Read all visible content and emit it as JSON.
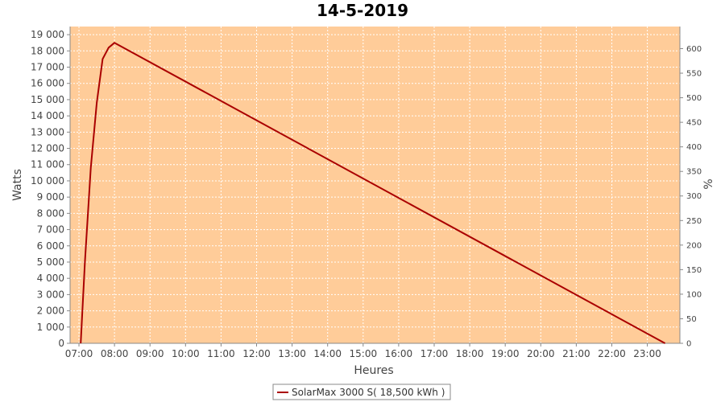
{
  "chart_data": {
    "type": "line",
    "title": "14-5-2019",
    "xlabel": "Heures",
    "ylabel": "Watts",
    "y2label": "%",
    "x_ticks": [
      "07:00",
      "08:00",
      "09:00",
      "10:00",
      "11:00",
      "12:00",
      "13:00",
      "14:00",
      "15:00",
      "16:00",
      "17:00",
      "18:00",
      "19:00",
      "20:00",
      "21:00",
      "22:00",
      "23:00"
    ],
    "y_ticks": [
      "0",
      "1 000",
      "2 000",
      "3 000",
      "4 000",
      "5 000",
      "6 000",
      "7 000",
      "8 000",
      "9 000",
      "10 000",
      "11 000",
      "12 000",
      "13 000",
      "14 000",
      "15 000",
      "16 000",
      "17 000",
      "18 000",
      "19 000"
    ],
    "y2_ticks": [
      "0",
      "50",
      "100",
      "150",
      "200",
      "250",
      "300",
      "350",
      "400",
      "450",
      "500",
      "550",
      "600"
    ],
    "xlim": [
      "06:45",
      "23:55"
    ],
    "ylim": [
      0,
      19500
    ],
    "y2lim": [
      0,
      645
    ],
    "grid": true,
    "background_color": "#ffcc99",
    "series": [
      {
        "name": "SolarMax 3000 S( 18,500 kWh )",
        "color": "#aa0000",
        "x": [
          "07:03",
          "07:10",
          "07:20",
          "07:30",
          "07:40",
          "07:50",
          "08:00",
          "23:30"
        ],
        "y": [
          0,
          5000,
          10800,
          14800,
          17500,
          18200,
          18500,
          0
        ]
      }
    ],
    "legend": {
      "position": "bottom-center",
      "label": "SolarMax 3000 S( 18,500 kWh )"
    }
  }
}
